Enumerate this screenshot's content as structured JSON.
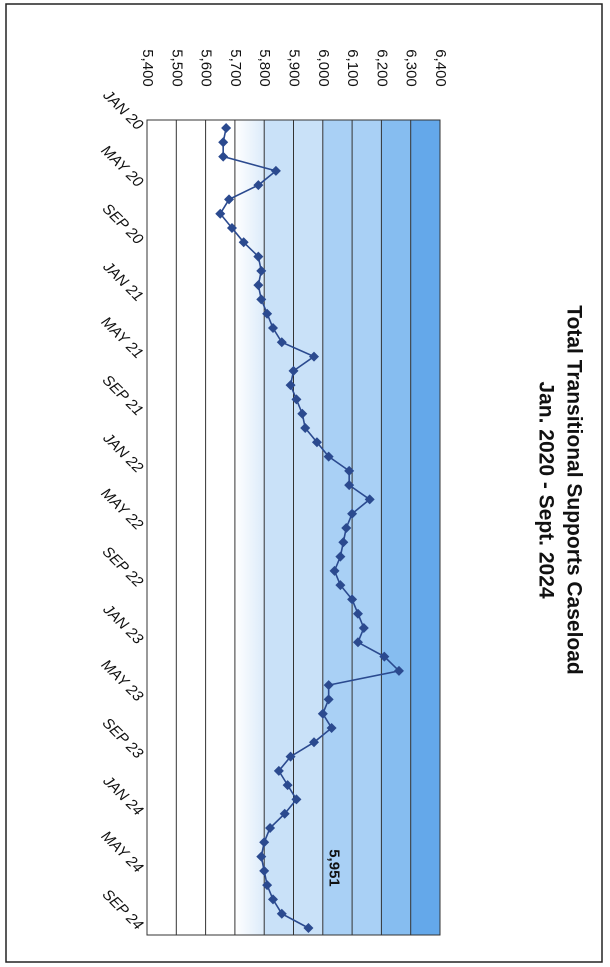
{
  "chart_data": {
    "type": "line",
    "title": "Total Transitional Supports Caseload",
    "subtitle": "Jan. 2020 - Sept. 2024",
    "categories": [
      "JAN 20",
      null,
      null,
      null,
      "MAY 20",
      null,
      null,
      null,
      "SEP 20",
      null,
      null,
      null,
      "JAN 21",
      null,
      null,
      null,
      "MAY 21",
      null,
      null,
      null,
      "SEP 21",
      null,
      null,
      null,
      "JAN 22",
      null,
      null,
      null,
      "MAY 22",
      null,
      null,
      null,
      "SEP 22",
      null,
      null,
      null,
      "JAN 23",
      null,
      null,
      null,
      "MAY 23",
      null,
      null,
      null,
      "SEP 23",
      null,
      null,
      null,
      "JAN 24",
      null,
      null,
      null,
      "MAY 24",
      null,
      null,
      null,
      "SEP 24"
    ],
    "series": [
      {
        "name": "Total Transitional Supports Caseload",
        "color": "#2b4a8f",
        "values": [
          5670,
          5660,
          5660,
          5840,
          5780,
          5680,
          5650,
          5690,
          5730,
          5780,
          5790,
          5780,
          5790,
          5810,
          5830,
          5860,
          5970,
          5900,
          5890,
          5910,
          5930,
          5940,
          5980,
          6020,
          6090,
          6090,
          6160,
          6100,
          6080,
          6070,
          6060,
          6040,
          6060,
          6100,
          6120,
          6140,
          6120,
          6210,
          6260,
          6020,
          6020,
          6000,
          6030,
          5970,
          5890,
          5850,
          5880,
          5910,
          5870,
          5820,
          5800,
          5790,
          5800,
          5810,
          5830,
          5860,
          5951
        ],
        "value_labels": [
          null,
          null,
          null,
          null,
          null,
          null,
          null,
          null,
          null,
          null,
          null,
          null,
          null,
          null,
          null,
          null,
          null,
          null,
          null,
          null,
          null,
          null,
          null,
          null,
          null,
          null,
          null,
          null,
          null,
          null,
          null,
          null,
          null,
          null,
          null,
          null,
          null,
          null,
          null,
          null,
          null,
          null,
          null,
          null,
          null,
          null,
          null,
          null,
          null,
          null,
          null,
          null,
          null,
          null,
          null,
          null,
          "5,951"
        ]
      }
    ],
    "ylim": [
      5400,
      6400
    ],
    "yticks": [
      {
        "value": 5400,
        "label": "5,400"
      },
      {
        "value": 5500,
        "label": "5,500"
      },
      {
        "value": 5600,
        "label": "5,600"
      },
      {
        "value": 5700,
        "label": "5,700"
      },
      {
        "value": 5800,
        "label": "5,800"
      },
      {
        "value": 5900,
        "label": "5,900"
      },
      {
        "value": 6000,
        "label": "6,000"
      },
      {
        "value": 6100,
        "label": "6,100"
      },
      {
        "value": 6200,
        "label": "6,200"
      },
      {
        "value": 6300,
        "label": "6,300"
      },
      {
        "value": 6400,
        "label": "6,400"
      }
    ],
    "grid": true
  }
}
